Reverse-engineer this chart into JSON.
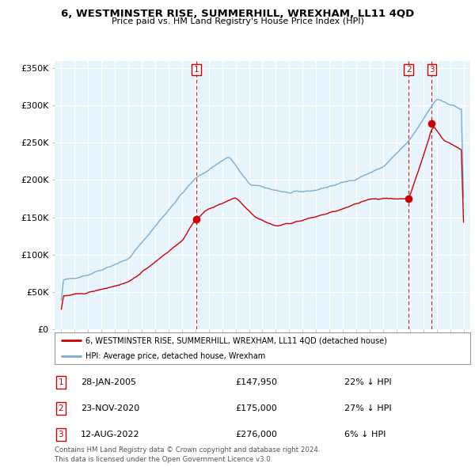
{
  "title": "6, WESTMINSTER RISE, SUMMERHILL, WREXHAM, LL11 4QD",
  "subtitle": "Price paid vs. HM Land Registry's House Price Index (HPI)",
  "ylabel_ticks": [
    "£0",
    "£50K",
    "£100K",
    "£150K",
    "£200K",
    "£250K",
    "£300K",
    "£350K"
  ],
  "ytick_values": [
    0,
    50000,
    100000,
    150000,
    200000,
    250000,
    300000,
    350000
  ],
  "ylim": [
    0,
    360000
  ],
  "xlim": [
    1994.5,
    2025.5
  ],
  "house_color": "#cc0000",
  "hpi_color": "#7aadd4",
  "hpi_fill_color": "#daeaf7",
  "vline_color": "#cc0000",
  "transaction_years": [
    2005.07,
    2020.9,
    2022.62
  ],
  "transaction_prices": [
    147950,
    175000,
    276000
  ],
  "transaction_labels": [
    "1",
    "2",
    "3"
  ],
  "legend_house": "6, WESTMINSTER RISE, SUMMERHILL, WREXHAM, LL11 4QD (detached house)",
  "legend_hpi": "HPI: Average price, detached house, Wrexham",
  "table_data": [
    [
      "1",
      "28-JAN-2005",
      "£147,950",
      "22% ↓ HPI"
    ],
    [
      "2",
      "23-NOV-2020",
      "£175,000",
      "27% ↓ HPI"
    ],
    [
      "3",
      "12-AUG-2022",
      "£276,000",
      "6% ↓ HPI"
    ]
  ],
  "footer": "Contains HM Land Registry data © Crown copyright and database right 2024.\nThis data is licensed under the Open Government Licence v3.0.",
  "background_color": "#ffffff",
  "plot_bg_color": "#e8f4fb",
  "grid_color": "#ffffff"
}
